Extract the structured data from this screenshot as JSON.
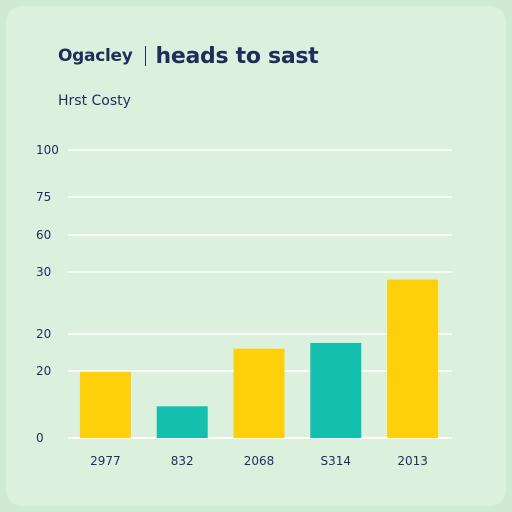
{
  "header": {
    "brand": "Ogacley",
    "headline": "heads to sast"
  },
  "subtitle": "Hrst Costy",
  "colors": {
    "yellow": "#fecf0b",
    "teal": "#14bfae",
    "grid": "#ffffff",
    "axis": "#1f2d5c"
  },
  "chart_data": {
    "type": "bar",
    "title": "Hrst Costy",
    "xlabel": "",
    "ylabel": "",
    "grid": true,
    "y_tick_labels": [
      "100",
      "75",
      "60",
      "30",
      "20",
      "20",
      "0"
    ],
    "categories": [
      "2977",
      "832",
      "2068",
      "S314",
      "2013"
    ],
    "values": [
      23,
      11,
      31,
      33,
      55
    ],
    "bar_colors": [
      "yellow",
      "teal",
      "yellow",
      "teal",
      "yellow"
    ],
    "ylim": [
      0,
      100
    ]
  }
}
